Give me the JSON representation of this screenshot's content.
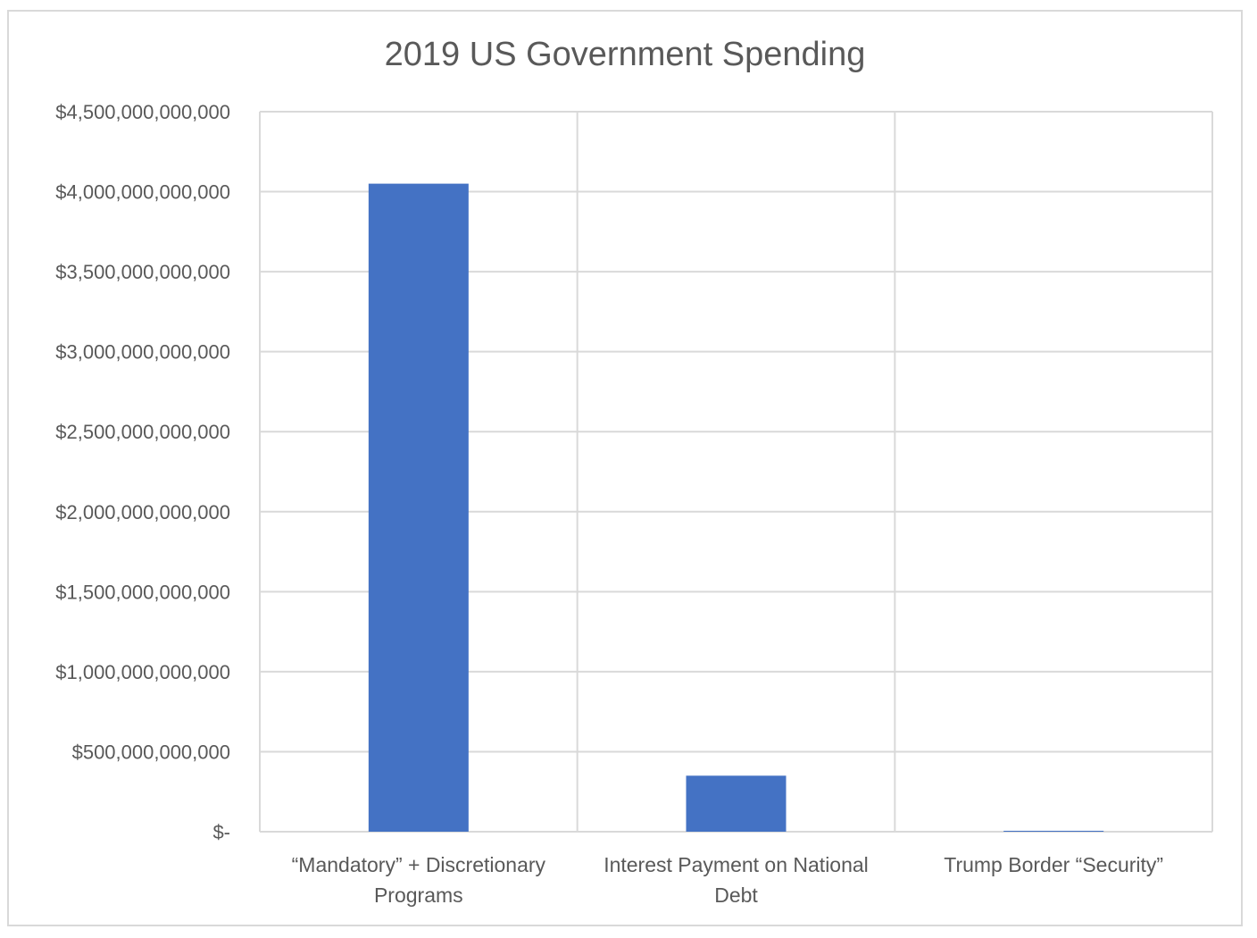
{
  "chart_data": {
    "type": "bar",
    "title": "2019 US Government Spending",
    "xlabel": "",
    "ylabel": "",
    "categories": [
      [
        "“Mandatory” + Discretionary",
        "Programs"
      ],
      [
        "Interest Payment on National",
        "Debt"
      ],
      [
        "Trump Border “Security”"
      ]
    ],
    "values": [
      4050000000000,
      350000000000,
      5700000000
    ],
    "ylim": [
      0,
      4500000000000
    ],
    "yticks": [
      0,
      500000000000,
      1000000000000,
      1500000000000,
      2000000000000,
      2500000000000,
      3000000000000,
      3500000000000,
      4000000000000,
      4500000000000
    ],
    "ytick_labels": [
      "$-",
      "$500,000,000,000",
      "$1,000,000,000,000",
      "$1,500,000,000,000",
      "$2,000,000,000,000",
      "$2,500,000,000,000",
      "$3,000,000,000,000",
      "$3,500,000,000,000",
      "$4,000,000,000,000",
      "$4,500,000,000,000"
    ],
    "grid": true,
    "bar_color": "#4472c4",
    "grid_color": "#d9d9d9"
  }
}
